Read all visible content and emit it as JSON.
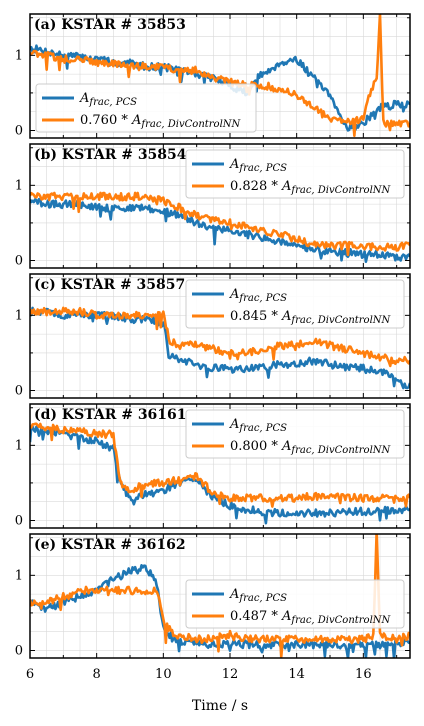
{
  "figure": {
    "xlabel": "Time / s",
    "x_ticks": [
      6,
      8,
      10,
      12,
      14,
      16
    ],
    "y_ticks": [
      0,
      1
    ],
    "xlim": [
      6,
      17.4
    ],
    "ylim": [
      -0.1,
      1.55
    ]
  },
  "colors": {
    "series1": "#1f77b4",
    "series2": "#ff7f0e"
  },
  "chart_data": [
    {
      "type": "line",
      "title": "(a) KSTAR # 35853",
      "legend_position": "lower-left",
      "series": [
        {
          "name": "A_frac,PCS",
          "label_main": "A",
          "label_sub": "frac, PCS",
          "label_prefix": "",
          "x": [
            6,
            6.5,
            7,
            7.5,
            8,
            8.5,
            9,
            9.5,
            10,
            10.5,
            11,
            11.5,
            12,
            12.5,
            12.8,
            13,
            13.5,
            14,
            14.5,
            15,
            15.3,
            15.5,
            15.8,
            16,
            16.5,
            17,
            17.4
          ],
          "y": [
            1.1,
            1.05,
            1.0,
            0.98,
            0.95,
            0.9,
            0.9,
            0.85,
            0.85,
            0.8,
            0.75,
            0.7,
            0.6,
            0.5,
            0.7,
            0.75,
            0.9,
            0.95,
            0.7,
            0.45,
            0.2,
            0.05,
            0.05,
            0.1,
            0.3,
            0.35,
            0.35
          ]
        },
        {
          "name": "0.760 * A_frac,DivControlNN",
          "label_main": "A",
          "label_sub": "frac, DivControlNN",
          "label_prefix": "0.760 * ",
          "x": [
            6,
            6.5,
            7,
            7.5,
            8,
            8.5,
            9,
            9.5,
            10,
            10.5,
            11,
            11.5,
            12,
            12.5,
            13,
            13.5,
            14,
            14.5,
            15,
            15.5,
            16,
            16.2,
            16.4,
            16.5,
            16.6,
            17,
            17.4
          ],
          "y": [
            1.05,
            1.0,
            0.95,
            0.95,
            0.9,
            0.9,
            0.85,
            0.85,
            0.85,
            0.8,
            0.8,
            0.7,
            0.65,
            0.6,
            0.6,
            0.55,
            0.5,
            0.3,
            0.15,
            0.1,
            0.15,
            0.5,
            0.7,
            1.55,
            0.1,
            0.1,
            0.1
          ]
        }
      ]
    },
    {
      "type": "line",
      "title": "(b) KSTAR # 35854",
      "legend_position": "upper-right",
      "series": [
        {
          "name": "A_frac,PCS",
          "label_main": "A",
          "label_sub": "frac, PCS",
          "label_prefix": "",
          "x": [
            6,
            6.5,
            7,
            7.5,
            8,
            8.5,
            9,
            9.5,
            10,
            10.5,
            11,
            11.5,
            12,
            12.5,
            13,
            13.5,
            14,
            14.5,
            15,
            15.5,
            16,
            16.5,
            17,
            17.4
          ],
          "y": [
            0.8,
            0.75,
            0.75,
            0.75,
            0.7,
            0.7,
            0.7,
            0.7,
            0.65,
            0.6,
            0.5,
            0.45,
            0.4,
            0.35,
            0.3,
            0.25,
            0.2,
            0.15,
            0.12,
            0.1,
            0.1,
            0.08,
            0.05,
            0.05
          ]
        },
        {
          "name": "0.828 * A_frac,DivControlNN",
          "label_main": "A",
          "label_sub": "frac, DivControlNN",
          "label_prefix": "0.828 * ",
          "x": [
            6,
            6.5,
            7,
            7.5,
            8,
            8.5,
            9,
            9.5,
            10,
            10.5,
            11,
            11.5,
            12,
            12.5,
            13,
            13.5,
            14,
            14.5,
            15,
            15.5,
            16,
            16.5,
            17,
            17.4
          ],
          "y": [
            0.85,
            0.85,
            0.85,
            0.85,
            0.85,
            0.85,
            0.85,
            0.85,
            0.8,
            0.7,
            0.6,
            0.55,
            0.5,
            0.45,
            0.4,
            0.35,
            0.28,
            0.22,
            0.2,
            0.2,
            0.18,
            0.18,
            0.18,
            0.2
          ]
        }
      ]
    },
    {
      "type": "line",
      "title": "(c) KSTAR # 35857",
      "legend_position": "upper-right",
      "series": [
        {
          "name": "A_frac,PCS",
          "label_main": "A",
          "label_sub": "frac, PCS",
          "label_prefix": "",
          "x": [
            6,
            6.5,
            7,
            7.5,
            8,
            8.5,
            9,
            9.5,
            10,
            10.2,
            10.5,
            11,
            11.5,
            12,
            12.5,
            13,
            13.5,
            14,
            14.5,
            15,
            15.5,
            16,
            16.5,
            17,
            17.2,
            17.4
          ],
          "y": [
            1.05,
            1.05,
            1.0,
            1.0,
            1.0,
            1.0,
            0.95,
            0.95,
            0.9,
            0.45,
            0.4,
            0.35,
            0.3,
            0.28,
            0.3,
            0.3,
            0.35,
            0.35,
            0.4,
            0.35,
            0.3,
            0.3,
            0.25,
            0.15,
            0.05,
            0.1
          ]
        },
        {
          "name": "0.845 * A_frac,DivControlNN",
          "label_main": "A",
          "label_sub": "frac, DivControlNN",
          "label_prefix": "0.845 * ",
          "x": [
            6,
            6.5,
            7,
            7.5,
            8,
            8.5,
            9,
            9.5,
            10,
            10.2,
            10.5,
            11,
            11.5,
            12,
            12.5,
            13,
            13.5,
            14,
            14.5,
            15,
            15.5,
            16,
            16.5,
            17,
            17.4
          ],
          "y": [
            1.05,
            1.05,
            1.05,
            1.05,
            1.0,
            1.0,
            1.0,
            1.0,
            1.0,
            0.65,
            0.6,
            0.6,
            0.55,
            0.5,
            0.5,
            0.55,
            0.6,
            0.6,
            0.65,
            0.6,
            0.55,
            0.5,
            0.45,
            0.4,
            0.4
          ]
        }
      ]
    },
    {
      "type": "line",
      "title": "(d) KSTAR # 36161",
      "legend_position": "upper-right",
      "series": [
        {
          "name": "A_frac,PCS",
          "label_main": "A",
          "label_sub": "frac, PCS",
          "label_prefix": "",
          "x": [
            6,
            6.5,
            7,
            7.5,
            8,
            8.5,
            8.7,
            9,
            9.5,
            10,
            10.5,
            11,
            11.5,
            12,
            12.5,
            13,
            13.5,
            14,
            14.5,
            15,
            15.5,
            16,
            16.5,
            17,
            17.4
          ],
          "y": [
            1.2,
            1.2,
            1.15,
            1.1,
            1.05,
            0.95,
            0.5,
            0.3,
            0.35,
            0.4,
            0.5,
            0.55,
            0.3,
            0.2,
            0.15,
            0.12,
            0.1,
            0.1,
            0.1,
            0.1,
            0.12,
            0.12,
            0.12,
            0.15,
            0.15
          ]
        },
        {
          "name": "0.800 * A_frac,DivControlNN",
          "label_main": "A",
          "label_sub": "frac, DivControlNN",
          "label_prefix": "0.800 * ",
          "x": [
            6,
            6.5,
            7,
            7.5,
            8,
            8.5,
            8.7,
            9,
            9.5,
            10,
            10.5,
            11,
            11.5,
            12,
            12.5,
            13,
            13.5,
            14,
            14.5,
            15,
            15.5,
            16,
            16.5,
            17,
            17.4
          ],
          "y": [
            1.25,
            1.25,
            1.2,
            1.2,
            1.15,
            1.15,
            0.5,
            0.4,
            0.5,
            0.5,
            0.55,
            0.6,
            0.35,
            0.3,
            0.3,
            0.3,
            0.3,
            0.3,
            0.32,
            0.32,
            0.3,
            0.3,
            0.3,
            0.28,
            0.3
          ]
        }
      ]
    },
    {
      "type": "line",
      "title": "(e) KSTAR # 36162",
      "legend_position": "lower-right",
      "series": [
        {
          "name": "A_frac,PCS",
          "label_main": "A",
          "label_sub": "frac, PCS",
          "label_prefix": "",
          "x": [
            6,
            6.3,
            6.8,
            7.2,
            7.6,
            8,
            8.5,
            9,
            9.5,
            9.8,
            10,
            10.3,
            10.6,
            11,
            11.5,
            12,
            12.5,
            13,
            13.5,
            14,
            14.5,
            15,
            15.5,
            16,
            16.5,
            17,
            17.4
          ],
          "y": [
            0.65,
            0.55,
            0.6,
            0.7,
            0.75,
            0.8,
            0.95,
            1.05,
            1.1,
            0.9,
            0.3,
            0.15,
            0.12,
            0.1,
            0.08,
            0.1,
            0.08,
            0.08,
            0.08,
            0.08,
            0.08,
            0.08,
            0.08,
            0.08,
            0.08,
            0.1,
            0.1
          ]
        },
        {
          "name": "0.487 * A_frac,DivControlNN",
          "label_main": "A",
          "label_sub": "frac, DivControlNN",
          "label_prefix": "0.487 * ",
          "x": [
            6,
            6.3,
            6.8,
            7.2,
            7.6,
            8,
            8.5,
            9,
            9.5,
            9.8,
            10,
            10.3,
            10.6,
            11,
            11.5,
            12,
            12.5,
            13,
            13.5,
            14,
            14.5,
            15,
            15.5,
            16,
            16.3,
            16.4,
            16.5,
            17,
            17.4
          ],
          "y": [
            0.65,
            0.6,
            0.7,
            0.75,
            0.8,
            0.8,
            0.8,
            0.8,
            0.8,
            0.8,
            0.4,
            0.2,
            0.18,
            0.15,
            0.15,
            0.22,
            0.15,
            0.15,
            0.15,
            0.15,
            0.15,
            0.15,
            0.15,
            0.15,
            0.2,
            1.55,
            0.2,
            0.15,
            0.2
          ]
        }
      ]
    }
  ]
}
